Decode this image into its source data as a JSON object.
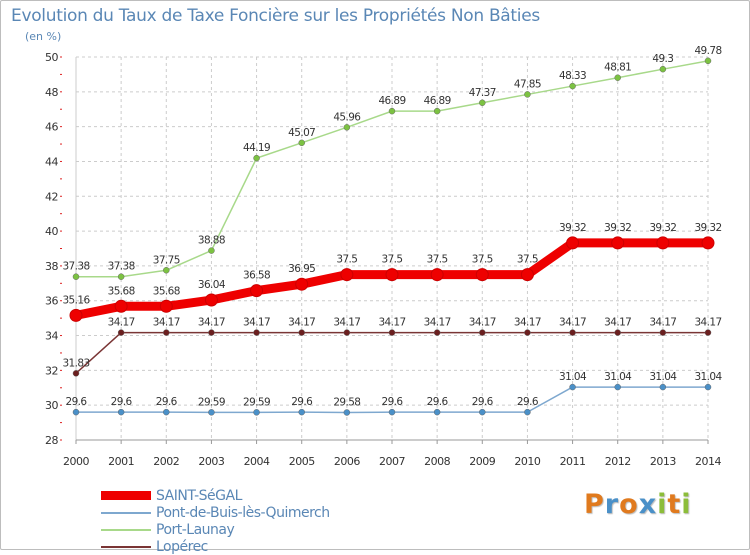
{
  "title": "Evolution du Taux de Taxe Foncière sur les Propriétés Non Bâties",
  "subtitle": "(en %)",
  "logo_text": "Proxiti",
  "logo_colors": [
    "#e07a1e",
    "#4a90c8",
    "#e07a1e",
    "#4a90c8",
    "#8cbd3a",
    "#e07a1e",
    "#8cbd3a"
  ],
  "chart_data": {
    "type": "line",
    "title": "Evolution du Taux de Taxe Foncière sur les Propriétés Non Bâties",
    "ylabel": "(en %)",
    "xlabel": "",
    "x": [
      "2000",
      "2001",
      "2002",
      "2003",
      "2004",
      "2005",
      "2006",
      "2007",
      "2008",
      "2009",
      "2010",
      "2011",
      "2012",
      "2013",
      "2014"
    ],
    "ylim": [
      28,
      50
    ],
    "yticks": [
      28,
      30,
      32,
      34,
      36,
      38,
      40,
      42,
      44,
      46,
      48,
      50
    ],
    "grid": true,
    "legend_position": "bottom-left",
    "series": [
      {
        "name": "SAINT-SéGAL",
        "color": "#ee0000",
        "marker_color": "#ee0000",
        "emphasis": true,
        "values": [
          35.16,
          35.68,
          35.68,
          36.04,
          36.58,
          36.95,
          37.5,
          37.5,
          37.5,
          37.5,
          37.5,
          39.32,
          39.32,
          39.32,
          39.32
        ],
        "labels": [
          "35.16",
          "35.68",
          "35.68",
          "36.04",
          "36.58",
          "36.95",
          "37.5",
          "37.5",
          "37.5",
          "37.5",
          "37.5",
          "39.32",
          "39.32",
          "39.32",
          "39.32"
        ]
      },
      {
        "name": "Pont-de-Buis-lès-Quimerch",
        "color": "#7ea8cf",
        "marker_color": "#4a90c8",
        "values": [
          29.6,
          29.6,
          29.6,
          29.59,
          29.59,
          29.6,
          29.58,
          29.6,
          29.6,
          29.6,
          29.6,
          31.04,
          31.04,
          31.04,
          31.04
        ],
        "labels": [
          "29.6",
          "29.6",
          "29.6",
          "29.59",
          "29.59",
          "29.6",
          "29.58",
          "29.6",
          "29.6",
          "29.6",
          "29.6",
          "31.04",
          "31.04",
          "31.04",
          "31.04"
        ]
      },
      {
        "name": "Port-Launay",
        "color": "#a8d98a",
        "marker_color": "#7cc242",
        "values": [
          37.38,
          37.38,
          37.75,
          38.88,
          44.19,
          45.07,
          45.96,
          46.89,
          46.89,
          47.37,
          47.85,
          48.33,
          48.81,
          49.3,
          49.78
        ],
        "labels": [
          "37.38",
          "37.38",
          "37.75",
          "38.88",
          "44.19",
          "45.07",
          "45.96",
          "46.89",
          "46.89",
          "47.37",
          "47.85",
          "48.33",
          "48.81",
          "49.3",
          "49.78"
        ]
      },
      {
        "name": "Lopérec",
        "color": "#7a3535",
        "marker_color": "#6b1f1f",
        "values": [
          31.83,
          34.17,
          34.17,
          34.17,
          34.17,
          34.17,
          34.17,
          34.17,
          34.17,
          34.17,
          34.17,
          34.17,
          34.17,
          34.17,
          34.17
        ],
        "labels": [
          "31.83",
          "34.17",
          "34.17",
          "34.17",
          "34.17",
          "34.17",
          "34.17",
          "34.17",
          "34.17",
          "34.17",
          "34.17",
          "34.17",
          "34.17",
          "34.17",
          "34.17"
        ]
      }
    ]
  }
}
